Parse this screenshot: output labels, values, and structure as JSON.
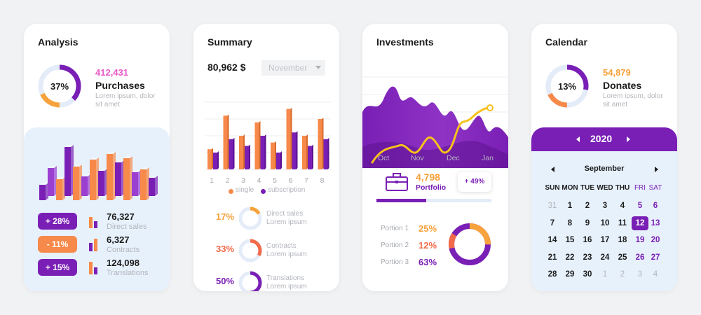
{
  "analysis": {
    "title": "Analysis",
    "ring_percent": "37%",
    "ring_value": 0.37,
    "headline_value": "412,431",
    "headline_label": "Purchases",
    "headline_desc": "Lorem ipsum, dolor sit amet",
    "stats": [
      {
        "badge": "+ 28%",
        "value": "76,327",
        "label": "Direct sales",
        "color": "#7a1fb5"
      },
      {
        "badge": "- 11%",
        "value": "6,327",
        "label": "Contracts",
        "color": "#f7894a"
      },
      {
        "badge": "+ 15%",
        "value": "124,098",
        "label": "Translations",
        "color": "#7a1fb5"
      }
    ]
  },
  "summary": {
    "title": "Summary",
    "amount": "80,962 $",
    "month_select": "November",
    "chart_data": {
      "type": "bar",
      "categories": [
        "1",
        "2",
        "3",
        "4",
        "5",
        "6",
        "7",
        "8"
      ],
      "series": [
        {
          "name": "single",
          "values": [
            3,
            8,
            5,
            7,
            4,
            9,
            5,
            7.5
          ]
        },
        {
          "name": "subscription",
          "values": [
            2.5,
            4.5,
            3.5,
            5,
            2.5,
            5.5,
            3.5,
            4.5
          ]
        }
      ],
      "legend": [
        "single",
        "subscription"
      ],
      "legend_position": "bottom"
    },
    "rows": [
      {
        "pct": "17%",
        "value": 0.17,
        "label": "Direct sales",
        "desc": "Lorem ipsum",
        "color": "#f7a23c"
      },
      {
        "pct": "33%",
        "value": 0.33,
        "label": "Contracts",
        "desc": "Lorem ipsum",
        "color": "#f26a4a"
      },
      {
        "pct": "50%",
        "value": 0.5,
        "label": "Translations",
        "desc": "Lorem ipsum",
        "color": "#7a1fb5"
      }
    ]
  },
  "investments": {
    "title": "Investments",
    "months": [
      "Oct",
      "Nov",
      "Dec",
      "Jan"
    ],
    "portfolio_value": "4,798",
    "portfolio_label": "Portfolio",
    "change_badge": "+ 49%",
    "progress": 0.43,
    "portions": [
      {
        "label": "Portion 1",
        "pct": "25%",
        "color": "#f7a23c"
      },
      {
        "label": "Portion 2",
        "pct": "12%",
        "color": "#f26a4a"
      },
      {
        "label": "Portion 3",
        "pct": "63%",
        "color": "#7a1fb5"
      }
    ]
  },
  "calendar": {
    "title": "Calendar",
    "ring_percent": "13%",
    "ring_value": 0.13,
    "headline_value": "54,879",
    "headline_label": "Donates",
    "headline_desc": "Lorem ipsum, dolor sit amet",
    "year": "2020",
    "month": "September",
    "weekdays": [
      "SUN",
      "MON",
      "TUE",
      "WED",
      "THU",
      "FRI",
      "SAT"
    ],
    "weeks": [
      [
        "31",
        "1",
        "2",
        "3",
        "4",
        "5",
        "6"
      ],
      [
        "7",
        "8",
        "9",
        "10",
        "11",
        "12",
        "13"
      ],
      [
        "14",
        "15",
        "16",
        "17",
        "18",
        "19",
        "20"
      ],
      [
        "21",
        "22",
        "23",
        "24",
        "25",
        "26",
        "27"
      ],
      [
        "28",
        "29",
        "30",
        "1",
        "2",
        "3",
        "4"
      ]
    ],
    "selected_day": "12"
  },
  "colors": {
    "purple": "#7a1fb5",
    "orange": "#f7894a",
    "yellow": "#f7b22c",
    "light_blue": "#e7f1fc"
  }
}
